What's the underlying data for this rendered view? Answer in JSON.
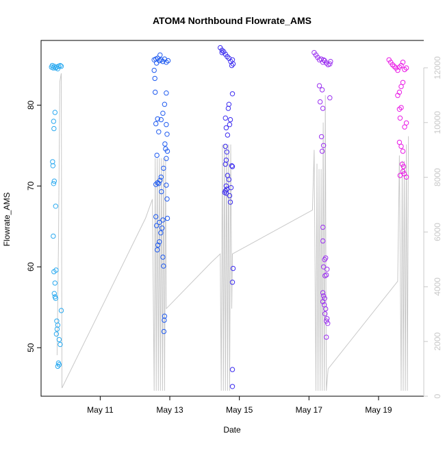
{
  "chart_data": {
    "type": "scatter",
    "title": "ATOM4 Northbound Flowrate_AMS",
    "xlabel": "Date",
    "ylabel": "Flowrate_AMS",
    "x_ticks": [
      "May 11",
      "May 13",
      "May 15",
      "May 17",
      "May 19"
    ],
    "x_tick_days": [
      11,
      13,
      15,
      17,
      19
    ],
    "xlim_days": [
      9.3,
      20.3
    ],
    "ylim": [
      44,
      88
    ],
    "y_ticks": [
      50,
      60,
      70,
      80
    ],
    "y2lim": [
      0,
      13000
    ],
    "y2_ticks": [
      0,
      2000,
      4000,
      6000,
      8000,
      10000,
      12000
    ],
    "grid": false,
    "axes_box": "open right edge",
    "secondary_axis": "right",
    "secondary_axis_color": "#c8c8c8",
    "point_style": "open circle",
    "line_color": "#c8c8c8",
    "series": [
      {
        "color": "#29a9f0",
        "points": [
          [
            9.6,
            84.7
          ],
          [
            9.62,
            84.9
          ],
          [
            9.65,
            84.6
          ],
          [
            9.68,
            84.8
          ],
          [
            9.72,
            84.6
          ],
          [
            9.75,
            84.7
          ],
          [
            9.8,
            84.8
          ],
          [
            9.85,
            84.9
          ],
          [
            9.88,
            84.8
          ],
          [
            9.78,
            84.5
          ],
          [
            9.7,
            79.1
          ],
          [
            9.66,
            78
          ],
          [
            9.67,
            77.1
          ],
          [
            9.63,
            73
          ],
          [
            9.64,
            72.5
          ],
          [
            9.68,
            70.6
          ],
          [
            9.66,
            70.3
          ],
          [
            9.72,
            67.5
          ],
          [
            9.65,
            63.8
          ],
          [
            9.73,
            59.6
          ],
          [
            9.67,
            59.4
          ],
          [
            9.7,
            58
          ],
          [
            9.68,
            56.7
          ],
          [
            9.7,
            56.3
          ],
          [
            9.72,
            56.1
          ],
          [
            9.88,
            54.6
          ],
          [
            9.75,
            53.3
          ],
          [
            9.78,
            52.8
          ],
          [
            9.76,
            52.3
          ],
          [
            9.74,
            51.7
          ],
          [
            9.82,
            51
          ],
          [
            9.85,
            50.4
          ],
          [
            9.8,
            48.1
          ],
          [
            9.82,
            47.9
          ],
          [
            9.78,
            47.7
          ]
        ]
      },
      {
        "color": "#1e5af0",
        "points": [
          [
            12.55,
            85.6
          ],
          [
            12.6,
            85.7
          ],
          [
            12.65,
            85.8
          ],
          [
            12.7,
            85.5
          ],
          [
            12.75,
            85.6
          ],
          [
            12.8,
            85.4
          ],
          [
            12.85,
            85.7
          ],
          [
            12.9,
            85.3
          ],
          [
            12.95,
            85.5
          ],
          [
            12.62,
            85.2
          ],
          [
            12.72,
            86.2
          ],
          [
            12.55,
            84.3
          ],
          [
            12.57,
            83.3
          ],
          [
            12.58,
            81.6
          ],
          [
            12.9,
            81.5
          ],
          [
            12.85,
            80.1
          ],
          [
            12.8,
            79
          ],
          [
            12.65,
            78.3
          ],
          [
            12.75,
            78.2
          ],
          [
            12.6,
            77.7
          ],
          [
            12.9,
            77.6
          ],
          [
            12.68,
            76.7
          ],
          [
            12.92,
            76.4
          ],
          [
            12.86,
            75.2
          ],
          [
            12.88,
            74.6
          ],
          [
            12.93,
            74.3
          ],
          [
            12.63,
            73.8
          ],
          [
            12.9,
            73.4
          ],
          [
            12.82,
            72.2
          ],
          [
            12.75,
            71.1
          ],
          [
            12.72,
            70.7
          ],
          [
            12.65,
            70.4
          ],
          [
            12.68,
            70.3
          ],
          [
            12.6,
            70.2
          ],
          [
            12.9,
            70.1
          ],
          [
            12.76,
            69.3
          ],
          [
            12.92,
            68.4
          ],
          [
            12.6,
            66.2
          ],
          [
            12.93,
            66
          ],
          [
            12.8,
            65.8
          ],
          [
            12.7,
            65.5
          ],
          [
            12.62,
            65.1
          ],
          [
            12.78,
            64.8
          ],
          [
            12.74,
            64.2
          ],
          [
            12.7,
            63.1
          ],
          [
            12.66,
            62.7
          ],
          [
            12.64,
            62.1
          ],
          [
            12.8,
            61.2
          ],
          [
            12.82,
            60.1
          ],
          [
            12.85,
            53.9
          ],
          [
            12.84,
            53.4
          ],
          [
            12.83,
            52
          ]
        ]
      },
      {
        "color": "#3a2af0",
        "points": [
          [
            14.45,
            87.1
          ],
          [
            14.5,
            86.8
          ],
          [
            14.55,
            86.6
          ],
          [
            14.6,
            86.3
          ],
          [
            14.65,
            86
          ],
          [
            14.7,
            85.8
          ],
          [
            14.75,
            85.4
          ],
          [
            14.8,
            85.6
          ],
          [
            14.82,
            85.1
          ],
          [
            14.5,
            86.5
          ],
          [
            14.78,
            84.9
          ],
          [
            14.8,
            81.4
          ],
          [
            14.7,
            80.1
          ],
          [
            14.68,
            79.6
          ],
          [
            14.6,
            78.4
          ],
          [
            14.74,
            78.2
          ],
          [
            14.72,
            77.6
          ],
          [
            14.62,
            77.2
          ],
          [
            14.66,
            76.3
          ],
          [
            14.6,
            74.9
          ],
          [
            14.64,
            74.2
          ],
          [
            14.62,
            73.2
          ],
          [
            14.6,
            72.7
          ],
          [
            14.78,
            72.5
          ],
          [
            14.8,
            72.4
          ],
          [
            14.66,
            71.3
          ],
          [
            14.7,
            70.8
          ],
          [
            14.62,
            70
          ],
          [
            14.76,
            69.8
          ],
          [
            14.64,
            69.6
          ],
          [
            14.6,
            69.4
          ],
          [
            14.58,
            69.2
          ],
          [
            14.62,
            69.1
          ],
          [
            14.72,
            68.8
          ],
          [
            14.74,
            68
          ],
          [
            14.82,
            59.8
          ],
          [
            14.8,
            58.1
          ],
          [
            14.8,
            47.3
          ],
          [
            14.8,
            45.2
          ]
        ]
      },
      {
        "color": "#9a2ef0",
        "points": [
          [
            17.15,
            86.5
          ],
          [
            17.2,
            86.2
          ],
          [
            17.25,
            85.9
          ],
          [
            17.3,
            85.6
          ],
          [
            17.35,
            85.7
          ],
          [
            17.4,
            85.3
          ],
          [
            17.45,
            85.5
          ],
          [
            17.5,
            85.2
          ],
          [
            17.55,
            85
          ],
          [
            17.6,
            85.1
          ],
          [
            17.62,
            85.4
          ],
          [
            17.42,
            85.6
          ],
          [
            17.3,
            82.4
          ],
          [
            17.38,
            81.9
          ],
          [
            17.6,
            80.9
          ],
          [
            17.32,
            80.4
          ],
          [
            17.4,
            79.6
          ],
          [
            17.36,
            76.1
          ],
          [
            17.42,
            75
          ],
          [
            17.38,
            74.3
          ],
          [
            17.4,
            64.9
          ],
          [
            17.4,
            63.2
          ],
          [
            17.48,
            61.1
          ],
          [
            17.45,
            60.9
          ],
          [
            17.42,
            60
          ],
          [
            17.5,
            59
          ],
          [
            17.46,
            58.9
          ],
          [
            17.52,
            59.7
          ],
          [
            17.4,
            56.8
          ],
          [
            17.42,
            56.4
          ],
          [
            17.45,
            56.1
          ],
          [
            17.4,
            55.7
          ],
          [
            17.44,
            55.3
          ],
          [
            17.48,
            54.8
          ],
          [
            17.46,
            54.2
          ],
          [
            17.52,
            53.6
          ],
          [
            17.5,
            53.3
          ],
          [
            17.54,
            53
          ],
          [
            17.5,
            51.3
          ]
        ]
      },
      {
        "color": "#ea18e6",
        "points": [
          [
            19.3,
            85.6
          ],
          [
            19.35,
            85.3
          ],
          [
            19.4,
            85
          ],
          [
            19.45,
            84.8
          ],
          [
            19.5,
            84.6
          ],
          [
            19.55,
            84.3
          ],
          [
            19.6,
            84.7
          ],
          [
            19.65,
            84.9
          ],
          [
            19.7,
            85.3
          ],
          [
            19.75,
            84.4
          ],
          [
            19.8,
            84.6
          ],
          [
            19.7,
            82.8
          ],
          [
            19.65,
            82.3
          ],
          [
            19.6,
            81.6
          ],
          [
            19.55,
            81.2
          ],
          [
            19.65,
            79.7
          ],
          [
            19.6,
            79.5
          ],
          [
            19.62,
            78.4
          ],
          [
            19.8,
            77.8
          ],
          [
            19.75,
            77.3
          ],
          [
            19.6,
            75.4
          ],
          [
            19.65,
            74.9
          ],
          [
            19.7,
            74.3
          ],
          [
            19.68,
            72.7
          ],
          [
            19.72,
            72.4
          ],
          [
            19.7,
            71.8
          ],
          [
            19.74,
            71.5
          ],
          [
            19.8,
            71.1
          ],
          [
            19.62,
            71.3
          ]
        ]
      }
    ],
    "secondary_series": {
      "name": "",
      "color": "#c8c8c8",
      "points": [
        [
          9.76,
          1500
        ],
        [
          9.8,
          5500
        ],
        [
          9.84,
          11500
        ],
        [
          9.88,
          11800
        ],
        [
          9.9,
          300
        ],
        [
          12.3,
          6500
        ],
        [
          12.5,
          7200
        ],
        [
          12.55,
          200
        ],
        [
          12.58,
          8700
        ],
        [
          12.61,
          200
        ],
        [
          12.64,
          8700
        ],
        [
          12.67,
          200
        ],
        [
          12.7,
          8700
        ],
        [
          12.73,
          200
        ],
        [
          12.76,
          8700
        ],
        [
          12.79,
          200
        ],
        [
          12.82,
          8700
        ],
        [
          12.85,
          200
        ],
        [
          12.88,
          8700
        ],
        [
          12.9,
          3200
        ],
        [
          14.2,
          4900
        ],
        [
          14.45,
          5200
        ],
        [
          14.48,
          200
        ],
        [
          14.51,
          9200
        ],
        [
          14.54,
          200
        ],
        [
          14.57,
          9200
        ],
        [
          14.6,
          200
        ],
        [
          14.63,
          9200
        ],
        [
          14.66,
          200
        ],
        [
          14.69,
          9200
        ],
        [
          14.72,
          200
        ],
        [
          14.75,
          9200
        ],
        [
          14.78,
          3200
        ],
        [
          14.8,
          5200
        ],
        [
          17.1,
          6800
        ],
        [
          17.15,
          9000
        ],
        [
          17.2,
          200
        ],
        [
          17.23,
          8500
        ],
        [
          17.26,
          200
        ],
        [
          17.29,
          8300
        ],
        [
          17.32,
          200
        ],
        [
          17.35,
          8300
        ],
        [
          17.38,
          200
        ],
        [
          17.41,
          10000
        ],
        [
          17.44,
          200
        ],
        [
          17.47,
          11000
        ],
        [
          17.5,
          200
        ],
        [
          17.55,
          1000
        ],
        [
          19.55,
          4200
        ],
        [
          19.6,
          8800
        ],
        [
          19.65,
          200
        ],
        [
          19.68,
          8600
        ],
        [
          19.71,
          200
        ],
        [
          19.74,
          8600
        ],
        [
          19.77,
          200
        ],
        [
          19.8,
          9200
        ],
        [
          19.83,
          200
        ],
        [
          19.86,
          9500
        ]
      ]
    }
  }
}
